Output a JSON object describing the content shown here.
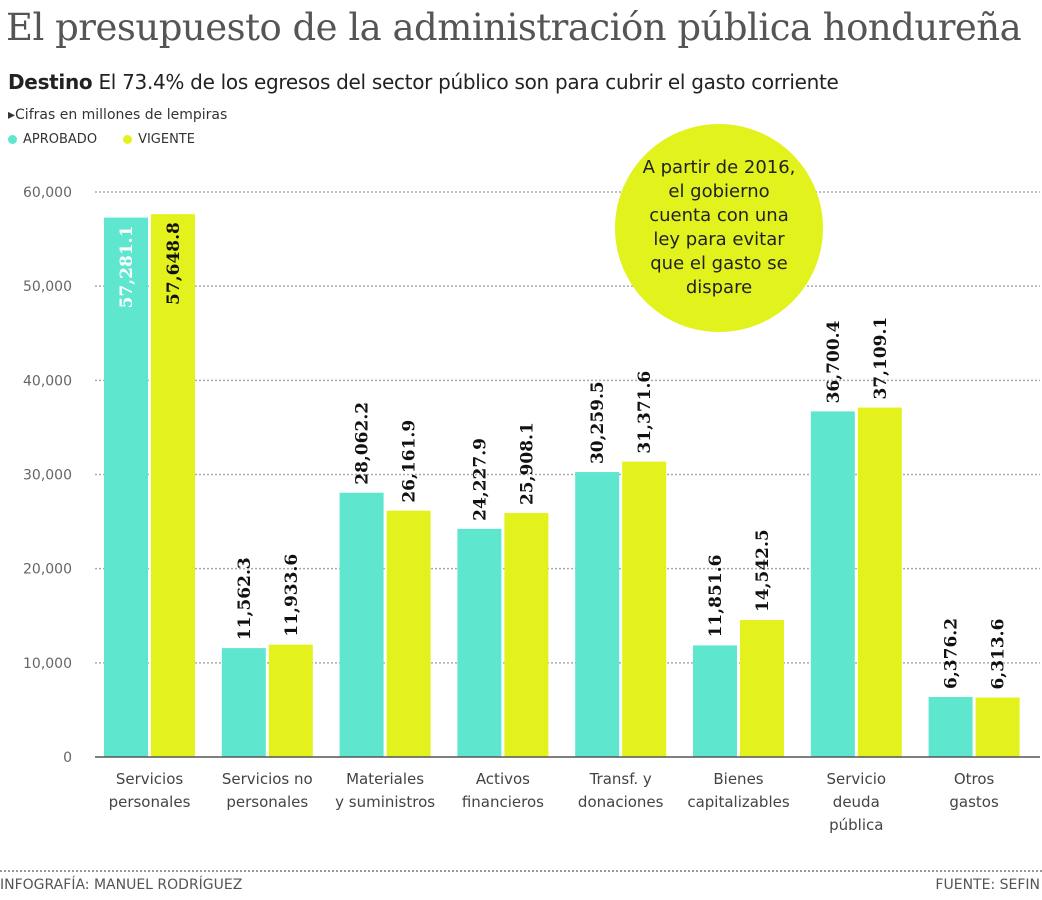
{
  "title": "El presupuesto de la administración pública hondureña",
  "subtitle": {
    "lead": "Destino",
    "text": "El 73.4% de los egresos del sector público son para cubrir el gasto corriente"
  },
  "units": "Cifras en millones de lempiras",
  "note": "A partir de 2016, el gobierno cuenta con una ley para evitar que el gasto se dispare",
  "footer": {
    "credit": "INFOGRAFÍA: MANUEL RODRÍGUEZ",
    "source": "FUENTE: SEFIN"
  },
  "colors": {
    "aprobado": "#5ee6cf",
    "vigente": "#e3f21c"
  },
  "chart_data": {
    "type": "bar",
    "categories": [
      "Servicios personales",
      "Servicios no personales",
      "Materiales y suministros",
      "Activos financieros",
      "Transf. y donaciones",
      "Bienes capitalizables",
      "Servicio deuda pública",
      "Otros gastos"
    ],
    "series": [
      {
        "name": "APROBADO",
        "values": [
          57281.1,
          11562.3,
          28062.2,
          24227.9,
          30259.5,
          11851.6,
          36700.4,
          6376.2
        ],
        "labels": [
          "57,281.1",
          "11,562.3",
          "28,062.2",
          "24,227.9",
          "30,259.5",
          "11,851.6",
          "36,700.4",
          "6,376.2"
        ]
      },
      {
        "name": "VIGENTE",
        "values": [
          57648.8,
          11933.6,
          26161.9,
          25908.1,
          31371.6,
          14542.5,
          37109.1,
          6313.6
        ],
        "labels": [
          "57,648.8",
          "11,933.6",
          "26,161.9",
          "25,908.1",
          "31,371.6",
          "14,542.5",
          "37,109.1",
          "6,313.6"
        ]
      }
    ],
    "yticks": [
      "0",
      "10,000",
      "20,000",
      "30,000",
      "40,000",
      "50,000",
      "60,000"
    ],
    "ylim": [
      0,
      60000
    ],
    "grid": true,
    "legend": "top-left"
  }
}
